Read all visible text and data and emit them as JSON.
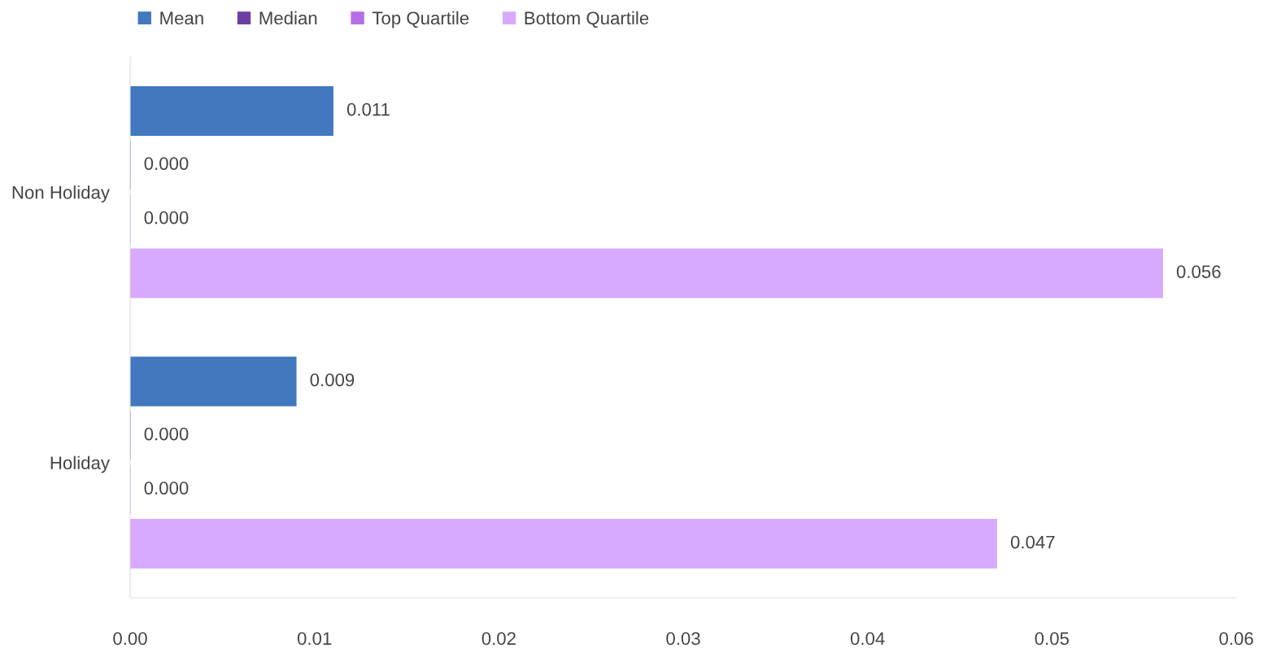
{
  "chart_data": {
    "type": "bar",
    "orientation": "horizontal",
    "categories": [
      "Non Holiday",
      "Holiday"
    ],
    "series": [
      {
        "name": "Mean",
        "color": "#4178be",
        "values": [
          0.011,
          0.009
        ],
        "value_labels": [
          "0.011",
          "0.009"
        ]
      },
      {
        "name": "Median",
        "color": "#6e3fa3",
        "values": [
          0,
          0
        ],
        "value_labels": [
          "0.000",
          "0.000"
        ]
      },
      {
        "name": "Top Quartile",
        "color": "#b46ee6",
        "values": [
          0,
          0
        ],
        "value_labels": [
          "0.000",
          "0.000"
        ]
      },
      {
        "name": "Bottom Quartile",
        "color": "#d7aaff",
        "values": [
          0.056,
          0.047
        ],
        "value_labels": [
          "0.056",
          "0.047"
        ]
      }
    ],
    "xlim": [
      0,
      0.06
    ],
    "xticks": [
      {
        "value": 0,
        "label": "0.00"
      },
      {
        "value": 0.01,
        "label": "0.01"
      },
      {
        "value": 0.02,
        "label": "0.02"
      },
      {
        "value": 0.03,
        "label": "0.03"
      },
      {
        "value": 0.04,
        "label": "0.04"
      },
      {
        "value": 0.05,
        "label": "0.05"
      },
      {
        "value": 0.06,
        "label": "0.06"
      }
    ],
    "grid": false,
    "legend": "top left"
  }
}
